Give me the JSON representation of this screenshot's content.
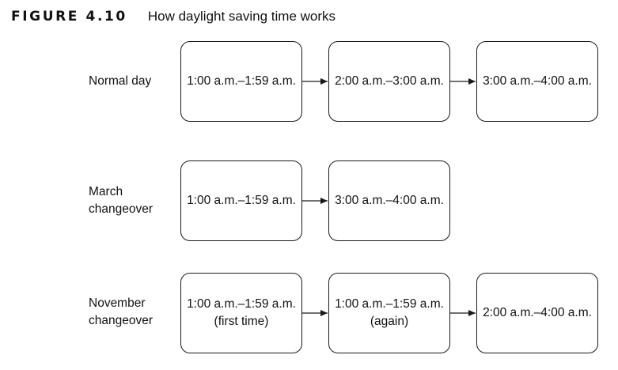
{
  "figure": {
    "label": "FIGURE 4.10",
    "title": "How daylight saving time works"
  },
  "rows": [
    {
      "label_lines": [
        "Normal day"
      ],
      "boxes": [
        {
          "lines": [
            "1:00 a.m.–1:59 a.m."
          ]
        },
        {
          "lines": [
            "2:00 a.m.–3:00 a.m."
          ]
        },
        {
          "lines": [
            "3:00 a.m.–4:00 a.m."
          ]
        }
      ]
    },
    {
      "label_lines": [
        "March",
        "changeover"
      ],
      "boxes": [
        {
          "lines": [
            "1:00 a.m.–1:59 a.m."
          ]
        },
        {
          "lines": [
            "3:00 a.m.–4:00 a.m."
          ]
        }
      ]
    },
    {
      "label_lines": [
        "November",
        "changeover"
      ],
      "boxes": [
        {
          "lines": [
            "1:00 a.m.–1:59 a.m.",
            "(first time)"
          ]
        },
        {
          "lines": [
            "1:00 a.m.–1:59 a.m.",
            "(again)"
          ]
        },
        {
          "lines": [
            "2:00 a.m.–4:00 a.m."
          ]
        }
      ]
    }
  ],
  "colors": {
    "stroke": "#1a1a1a",
    "text": "#111111",
    "background": "#ffffff"
  }
}
